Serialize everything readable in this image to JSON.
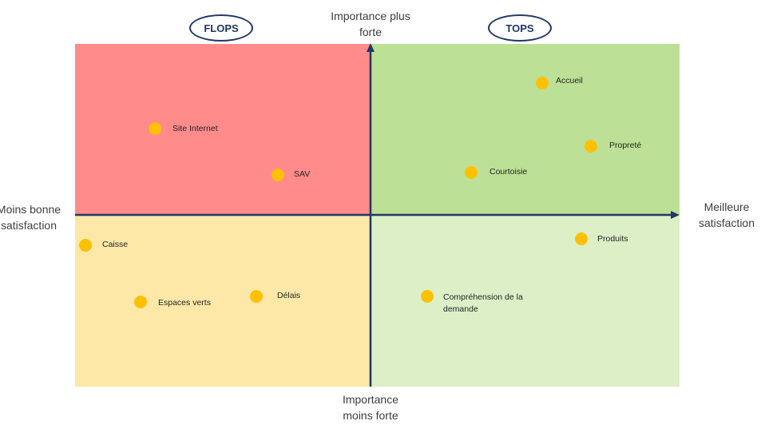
{
  "header": {
    "flops_label": "FLOPS",
    "tops_label": "TOPS"
  },
  "axes": {
    "top_label": "Importance plus forte",
    "bottom_label": "Importance moins forte",
    "left_label": "Moins bonne satisfaction",
    "right_label": "Meilleure satisfaction",
    "color": "#1f3864"
  },
  "quadrants": {
    "top_left_color": "#ff8b8b",
    "top_right_color": "#bce095",
    "bottom_left_color": "#fde8a7",
    "bottom_right_color": "#dcefc7"
  },
  "points": {
    "site_internet": "Site Internet",
    "sav": "SAV",
    "accueil": "Accueil",
    "proprete": "Propreté",
    "courtoisie": "Courtoisie",
    "caisse": "Caisse",
    "produits": "Produits",
    "espaces_verts": "Espaces verts",
    "delais": "Délais",
    "comprehension": "Compréhension de la demande"
  },
  "point_color": "#ffc000"
}
